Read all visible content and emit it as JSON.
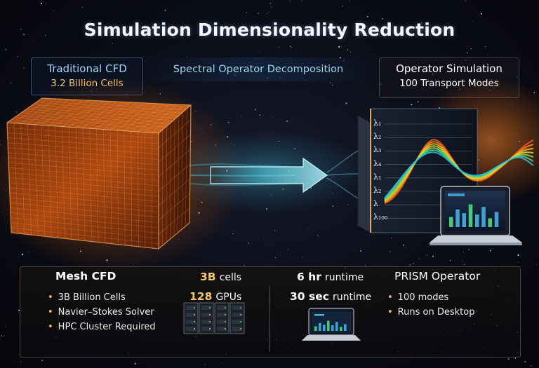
{
  "title": "Simulation Dimensionality Reduction",
  "left_label": {
    "title": "Traditional CFD",
    "subtitle": "3.2 Billion Cells"
  },
  "center_label": "Spectral Operator Decomposition",
  "right_label": {
    "title": "Operator Simulation",
    "subtitle": "100 Transport Modes"
  },
  "modes": [
    "λ₁",
    "λ₂",
    "λ₃",
    "λ₄",
    "λ₁",
    "λ₂",
    "λ",
    "λ₁₀₀"
  ],
  "bottom": {
    "left": {
      "heading": "Mesh CFD",
      "cells_number": "3B",
      "cells_unit": "cells",
      "gpus_number": "128",
      "gpus_unit": "GPUs",
      "runtime_value": "6 hr",
      "runtime_unit": "runtime",
      "bullets": [
        "3B Billion Cells",
        "Navier–Stokes Solver",
        "HPC Cluster Required"
      ]
    },
    "right": {
      "heading": "PRISM Operator",
      "runtime_value": "30 sec",
      "runtime_unit": "runtime",
      "bullets": [
        "100 modes",
        "Runs on Desktop"
      ]
    }
  },
  "colors": {
    "accent_gold": "#f3c66a",
    "accent_cyan": "#9fd6f0",
    "cube_orange": "#ff7a1c",
    "arrow_cyan": "#5fe0f0"
  }
}
